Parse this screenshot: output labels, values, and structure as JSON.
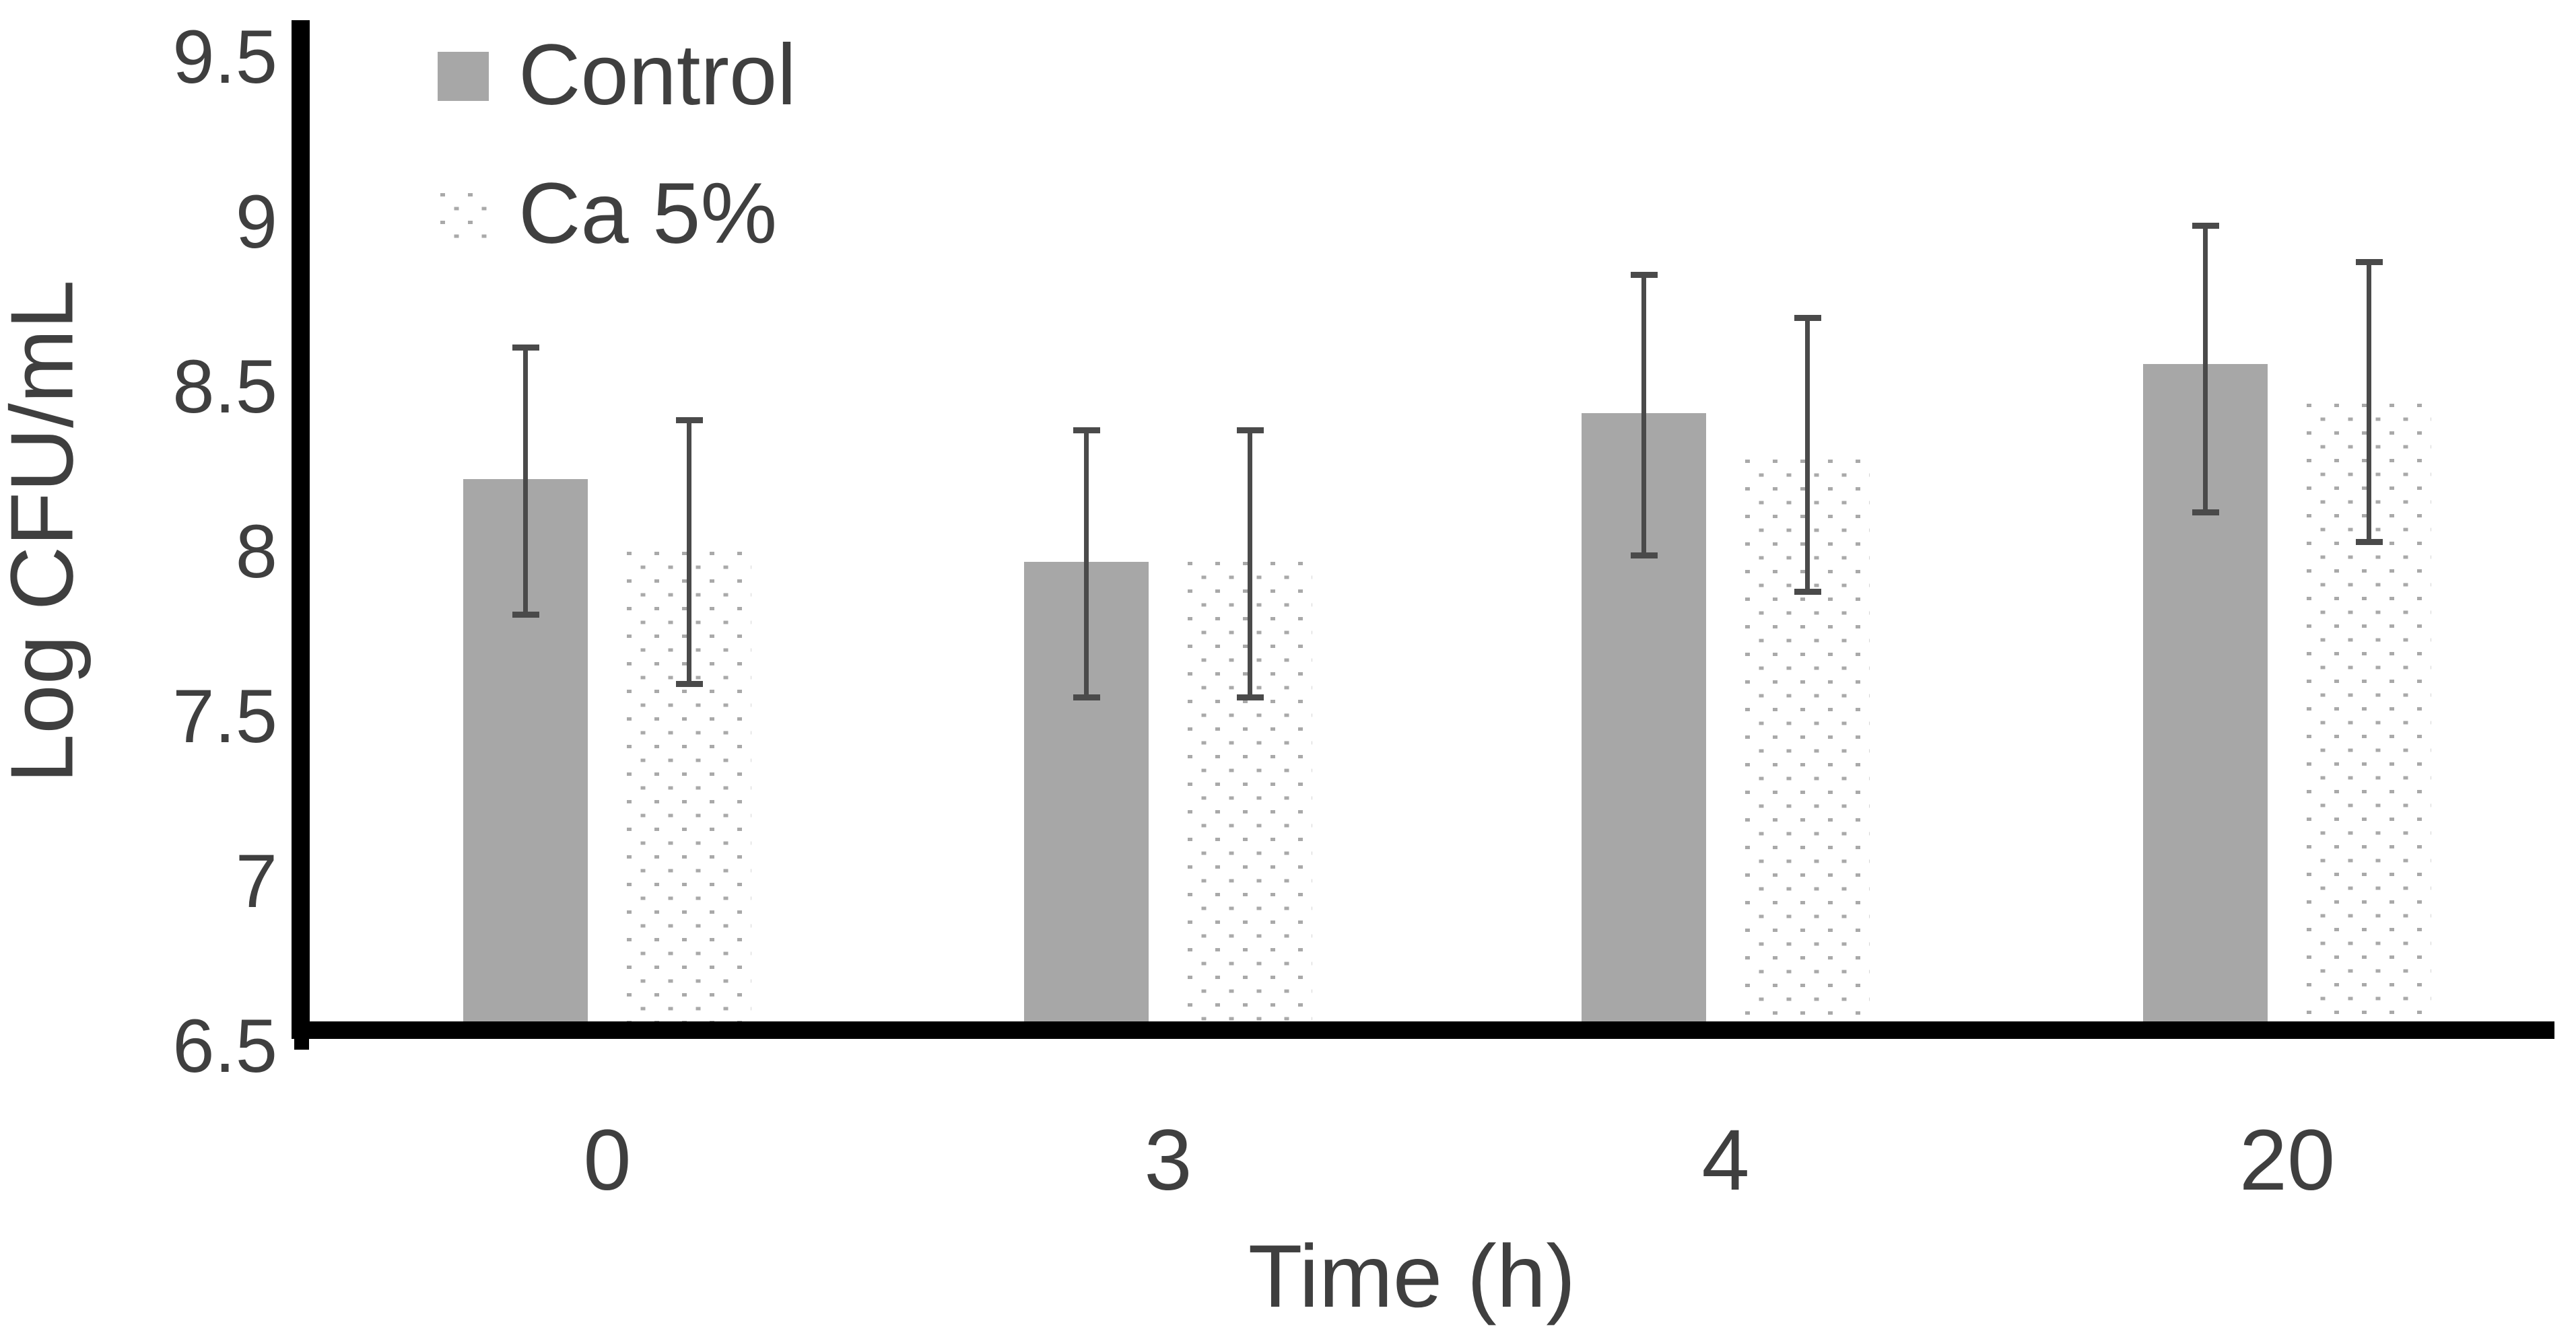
{
  "chart_data": {
    "type": "bar",
    "title": "",
    "xlabel": "Time (h)",
    "ylabel": "Log CFU/mL",
    "ylim": [
      6.5,
      9.5
    ],
    "ytick_step": 0.5,
    "ytick_values": [
      9.5,
      9,
      8.5,
      8,
      7.5,
      7,
      6.5
    ],
    "categories": [
      "0",
      "3",
      "4",
      "20"
    ],
    "grid": false,
    "error_bars": true,
    "legend_position": "top-left",
    "series": [
      {
        "name": "Control",
        "style": "solid",
        "values": [
          8.22,
          7.97,
          8.42,
          8.57
        ],
        "err_low": [
          7.81,
          7.56,
          7.99,
          8.12
        ],
        "err_high": [
          8.62,
          8.37,
          8.84,
          8.99
        ]
      },
      {
        "name": "Ca 5%",
        "style": "dotted",
        "values": [
          8.0,
          7.97,
          8.28,
          8.45
        ],
        "err_low": [
          7.6,
          7.56,
          7.88,
          8.03
        ],
        "err_high": [
          8.4,
          8.37,
          8.71,
          8.88
        ]
      }
    ]
  },
  "legend": {
    "items": [
      {
        "label": "Control",
        "swatch": "solid-gray-square"
      },
      {
        "label": "Ca 5%",
        "swatch": "dotted-square"
      }
    ]
  },
  "colors": {
    "bar_fill": "#a7a7a7",
    "pattern_dot": "#a9a9a9",
    "pattern_bg": "#ffffff",
    "error_bar": "#4a4a4a",
    "axis": "#000000",
    "text": "#3f3f3f",
    "background": "#ffffff"
  }
}
